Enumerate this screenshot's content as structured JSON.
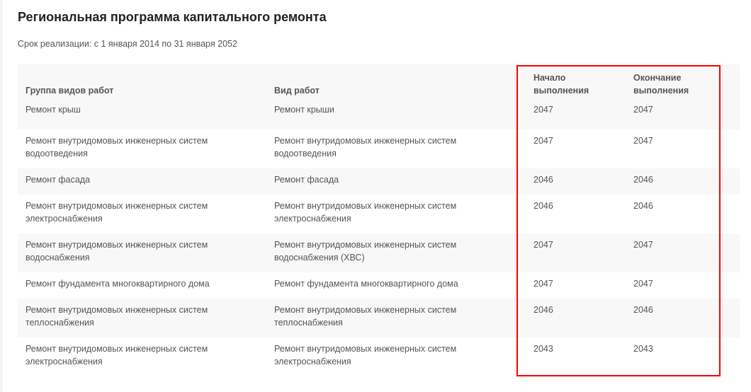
{
  "title": "Региональная программа капитального ремонта",
  "period": "Срок реализации: с 1 января 2014 по 31 января 2052",
  "table": {
    "headers": [
      "Группа видов работ",
      "Вид работ",
      "Начало выполнения",
      "Окончание выполнения"
    ],
    "rows": [
      {
        "group": "Ремонт крыш",
        "type": "Ремонт крыши",
        "start": "2047",
        "end": "2047"
      },
      {
        "group": "Ремонт внутридомовых инженерных систем водоотведения",
        "type": "Ремонт внутридомовых инженерных систем водоотведения",
        "start": "2047",
        "end": "2047"
      },
      {
        "group": "Ремонт фасада",
        "type": "Ремонт фасада",
        "start": "2046",
        "end": "2046"
      },
      {
        "group": "Ремонт внутридомовых инженерных систем электроснабжения",
        "type": "Ремонт внутридомовых инженерных систем электроснабжения",
        "start": "2046",
        "end": "2046"
      },
      {
        "group": "Ремонт внутридомовых инженерных систем водоснабжения",
        "type": "Ремонт внутридомовых инженерных систем водоснабжения (ХВС)",
        "start": "2047",
        "end": "2047"
      },
      {
        "group": "Ремонт фундамента многоквартирного дома",
        "type": "Ремонт фундамента многоквартирного дома",
        "start": "2047",
        "end": "2047"
      },
      {
        "group": "Ремонт внутридомовых инженерных систем теплоснабжения",
        "type": "Ремонт внутридомовых инженерных систем теплоснабжения",
        "start": "2046",
        "end": "2046"
      },
      {
        "group": "Ремонт внутридомовых инженерных систем электроснабжения",
        "type": "Ремонт внутридомовых инженерных систем электроснабжения",
        "start": "2043",
        "end": "2043"
      }
    ]
  },
  "highlight_color": "#ff0000"
}
